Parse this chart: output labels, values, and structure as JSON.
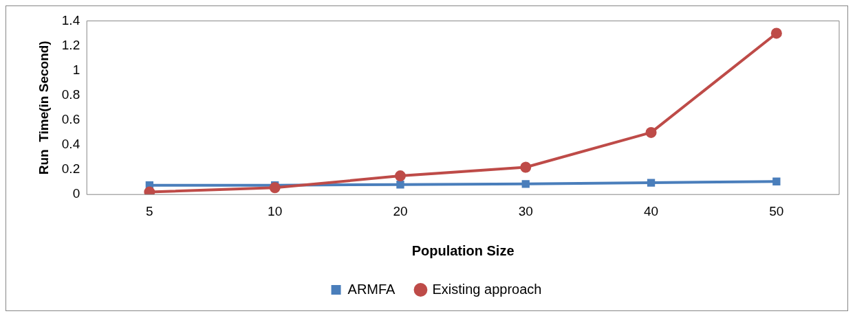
{
  "chart_data": {
    "type": "line",
    "xlabel": "Population Size",
    "ylabel": "Run  Time(in Second)",
    "categories": [
      "5",
      "10",
      "20",
      "30",
      "40",
      "50"
    ],
    "series": [
      {
        "name": "ARMFA",
        "color": "#4a7ebb",
        "marker": "square",
        "values": [
          0.075,
          0.075,
          0.08,
          0.085,
          0.095,
          0.105
        ]
      },
      {
        "name": "Existing approach",
        "color": "#be4b48",
        "marker": "circle",
        "values": [
          0.02,
          0.055,
          0.15,
          0.22,
          0.5,
          1.3
        ]
      }
    ],
    "ylim": [
      0,
      1.4
    ],
    "yticks": [
      0,
      0.2,
      0.4,
      0.6,
      0.8,
      1,
      1.2,
      1.4
    ],
    "grid": false,
    "legend": "bottom",
    "line_style": "solid"
  }
}
